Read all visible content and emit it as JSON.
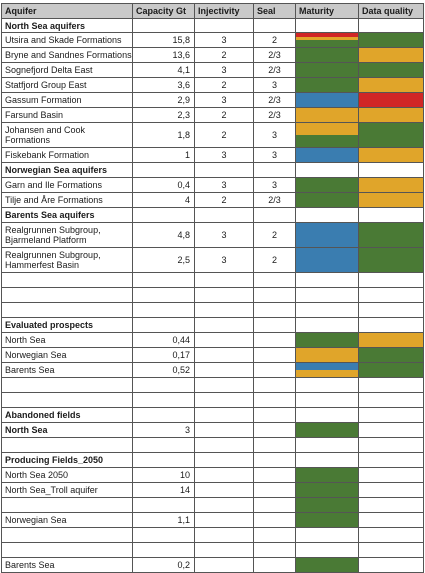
{
  "colors": {
    "green": "#4a7a35",
    "yellow": "#e0a52a",
    "red": "#d02626",
    "blue": "#3a7db0",
    "header_bg": "#c9c9c9"
  },
  "headers": [
    "Aquifer",
    "Capacity Gt",
    "Injectivity",
    "Seal",
    "Maturity",
    "Data quality"
  ],
  "rows": [
    {
      "type": "section",
      "label": "North Sea aquifers",
      "h": 14
    },
    {
      "type": "data",
      "label": "Utsira and Skade Formations",
      "cap": "15,8",
      "inj": "3",
      "seal": "2",
      "mat": [
        [
          "red",
          0.25
        ],
        [
          "yellow",
          0.25
        ],
        [
          "green",
          0.5
        ]
      ],
      "dq": [
        "green"
      ],
      "h": 15
    },
    {
      "type": "data",
      "label": "Bryne and Sandnes Formations",
      "cap": "13,6",
      "inj": "2",
      "seal": "2/3",
      "mat": [
        "green"
      ],
      "dq": [
        "yellow"
      ],
      "h": 15
    },
    {
      "type": "data",
      "label": "Sognefjord Delta East",
      "cap": "4,1",
      "inj": "3",
      "seal": "2/3",
      "mat": [
        "green"
      ],
      "dq": [
        "green"
      ],
      "h": 15
    },
    {
      "type": "data",
      "label": "Statfjord Group East",
      "cap": "3,6",
      "inj": "2",
      "seal": "3",
      "mat": [
        "green"
      ],
      "dq": [
        "yellow"
      ],
      "h": 15
    },
    {
      "type": "data",
      "label": "Gassum Formation",
      "cap": "2,9",
      "inj": "3",
      "seal": "2/3",
      "mat": [
        "blue"
      ],
      "dq": [
        "red"
      ],
      "h": 15
    },
    {
      "type": "data",
      "label": "Farsund Basin",
      "cap": "2,3",
      "inj": "2",
      "seal": "2/3",
      "mat": [
        "yellow"
      ],
      "dq": [
        "yellow"
      ],
      "h": 15
    },
    {
      "type": "data",
      "label": "Johansen and Cook Formations",
      "wrap": true,
      "cap": "1,8",
      "inj": "2",
      "seal": "3",
      "mat": [
        [
          "yellow",
          0.5
        ],
        [
          "green",
          0.5
        ]
      ],
      "dq": [
        "green"
      ],
      "h": 25
    },
    {
      "type": "data",
      "label": "Fiskebank Formation",
      "cap": "1",
      "inj": "3",
      "seal": "3",
      "mat": [
        "blue"
      ],
      "dq": [
        "yellow"
      ],
      "h": 15
    },
    {
      "type": "section",
      "label": "Norwegian Sea aquifers",
      "h": 15
    },
    {
      "type": "data",
      "label": "Garn and Ile Formations",
      "cap": "0,4",
      "inj": "3",
      "seal": "3",
      "mat": [
        "green"
      ],
      "dq": [
        "yellow"
      ],
      "h": 15
    },
    {
      "type": "data",
      "label": "Tilje and Åre Formations",
      "cap": "4",
      "inj": "2",
      "seal": "2/3",
      "mat": [
        "green"
      ],
      "dq": [
        "yellow"
      ],
      "h": 15
    },
    {
      "type": "section",
      "label": "Barents Sea aquifers",
      "h": 15
    },
    {
      "type": "data",
      "label": "Realgrunnen Subgroup, Bjarmeland Platform",
      "wrap": true,
      "cap": "4,8",
      "inj": "3",
      "seal": "2",
      "mat": [
        "blue"
      ],
      "dq": [
        "green"
      ],
      "h": 25
    },
    {
      "type": "data",
      "label": "Realgrunnen Subgroup, Hammerfest Basin",
      "wrap": true,
      "cap": "2,5",
      "inj": "3",
      "seal": "2",
      "mat": [
        "blue"
      ],
      "dq": [
        "green"
      ],
      "h": 25
    },
    {
      "type": "empty",
      "h": 15
    },
    {
      "type": "empty",
      "h": 15
    },
    {
      "type": "empty",
      "h": 15
    },
    {
      "type": "section",
      "label": "Evaluated prospects",
      "h": 15
    },
    {
      "type": "data",
      "label": "North Sea",
      "cap": "0,44",
      "inj": "",
      "seal": "",
      "mat": [
        "green"
      ],
      "dq": [
        "yellow"
      ],
      "h": 15
    },
    {
      "type": "data",
      "label": "Norwegian Sea",
      "cap": "0,17",
      "inj": "",
      "seal": "",
      "mat": [
        "yellow"
      ],
      "dq": [
        "green"
      ],
      "h": 15
    },
    {
      "type": "data",
      "label": "Barents Sea",
      "cap": "0,52",
      "inj": "",
      "seal": "",
      "mat": [
        [
          "blue",
          0.5
        ],
        [
          "yellow",
          0.5
        ]
      ],
      "dq": [
        "green"
      ],
      "h": 15
    },
    {
      "type": "empty",
      "h": 15
    },
    {
      "type": "empty",
      "h": 15
    },
    {
      "type": "section",
      "label": "Abandoned fields",
      "h": 15
    },
    {
      "type": "section",
      "label": "North Sea",
      "cap": "3",
      "mat": [
        "green"
      ],
      "h": 15
    },
    {
      "type": "empty",
      "h": 15
    },
    {
      "type": "section",
      "label": "Producing Fields_2050",
      "h": 15
    },
    {
      "type": "data",
      "label": "North Sea 2050",
      "cap": "10",
      "inj": "",
      "seal": "",
      "mat": [
        "green"
      ],
      "dq": [],
      "h": 15
    },
    {
      "type": "data",
      "label": "North Sea_Troll aquifer",
      "cap": "14",
      "inj": "",
      "seal": "",
      "mat": [
        "green"
      ],
      "dq": [],
      "h": 15
    },
    {
      "type": "empty",
      "mat": [
        "green"
      ],
      "h": 15
    },
    {
      "type": "data",
      "label": "Norwegian Sea",
      "cap": "1,1",
      "inj": "",
      "seal": "",
      "mat": [
        "green"
      ],
      "dq": [],
      "h": 15
    },
    {
      "type": "empty",
      "h": 15
    },
    {
      "type": "empty",
      "h": 15
    },
    {
      "type": "data",
      "label": "Barents Sea",
      "cap": "0,2",
      "inj": "",
      "seal": "",
      "mat": [
        "green"
      ],
      "dq": [],
      "h": 15
    }
  ]
}
